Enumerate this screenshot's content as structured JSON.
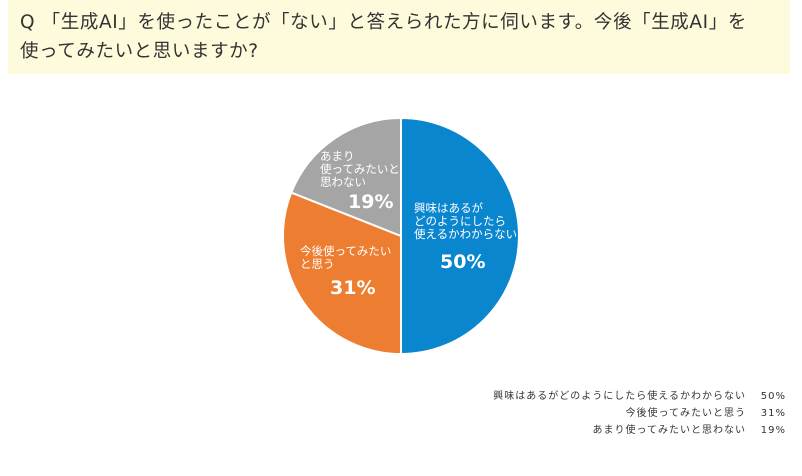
{
  "question": {
    "line1": "Q 「生成AI」を使ったことが「ない」と答えられた方に伺います。今後「生成AI」を",
    "line2": "使ってみたいと思いますか?"
  },
  "chart_data": {
    "type": "pie",
    "start_angle_deg": 0,
    "direction": "clockwise",
    "slices": [
      {
        "label_lines": [
          "興味はあるが",
          "どのようにしたら",
          "使えるかわからない"
        ],
        "label": "興味はあるがどのようにしたら使えるかわからない",
        "value": 50,
        "value_label": "50%",
        "color": "#0a86cf"
      },
      {
        "label_lines": [
          "今後使ってみたい",
          "と思う"
        ],
        "label": "今後使ってみたいと思う",
        "value": 31,
        "value_label": "31%",
        "color": "#ed7d31"
      },
      {
        "label_lines": [
          "あまり",
          "使ってみたいと",
          "思わない"
        ],
        "label": "あまり使ってみたいと思わない",
        "value": 19,
        "value_label": "19%",
        "color": "#a5a5a5"
      }
    ],
    "legend": [
      {
        "text": "興味はあるがどのようにしたら使えるかわからない",
        "value": "50%"
      },
      {
        "text": "今後使ってみたいと思う",
        "value": "31%"
      },
      {
        "text": "あまり使ってみたいと思わない",
        "value": "19%"
      }
    ],
    "legend_position": "bottom-right"
  }
}
